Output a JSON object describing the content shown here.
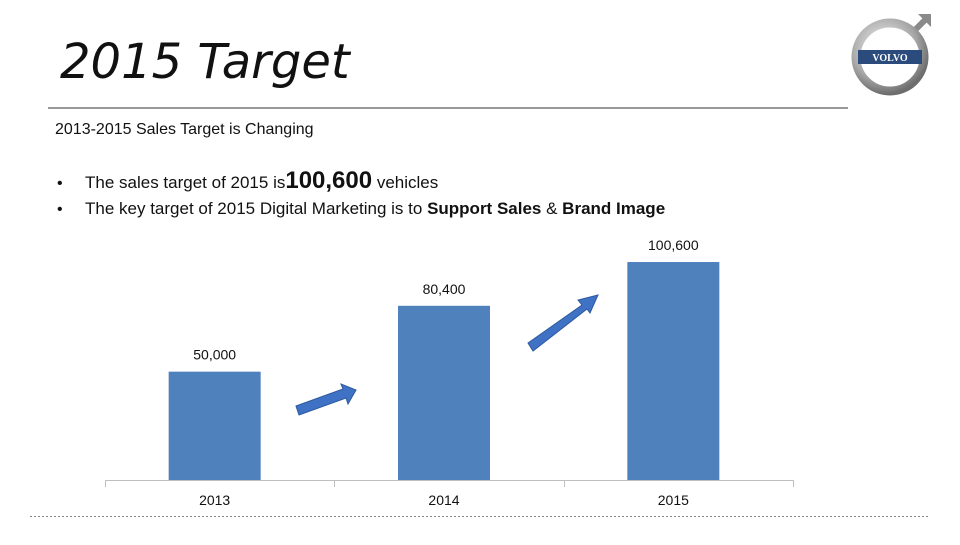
{
  "slide": {
    "title": "2015 Target",
    "logo": "VOLVO",
    "subtitle": "2013-2015 Sales Target is Changing",
    "bullets": [
      [
        "The sales target of 2015 is",
        "100,600",
        " vehicles"
      ],
      [
        "The key target of 2015 Digital Marketing is to ",
        "Support Sales",
        " & ",
        "Brand Image"
      ]
    ]
  },
  "chart_data": {
    "type": "bar",
    "categories": [
      "2013",
      "2014",
      "2015"
    ],
    "values": [
      50000,
      80400,
      100600
    ],
    "value_labels": [
      "50,000",
      "80,400",
      "100,600"
    ],
    "color": "#4f81bd",
    "ylim": [
      0,
      120000
    ]
  }
}
